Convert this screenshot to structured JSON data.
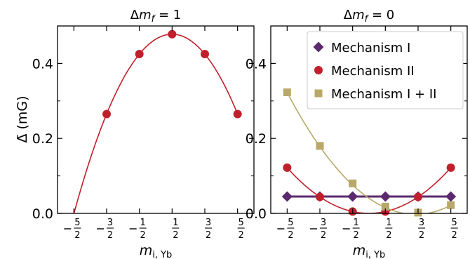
{
  "colors": {
    "mechanism_1": "#5b2a6e",
    "mechanism_2": "#c0202c",
    "mechanism_12": "#b8a96a",
    "axis": "#000000",
    "background": "#ffffff"
  },
  "shared": {
    "y_axis_label": "Δ̄ (mG)",
    "x_axis_label_base": "m",
    "x_axis_label_sub": "i, Yb",
    "x_ticks": [
      {
        "value": -2.5,
        "sign": "−",
        "num": "5",
        "den": "2"
      },
      {
        "value": -1.5,
        "sign": "−",
        "num": "3",
        "den": "2"
      },
      {
        "value": -0.5,
        "sign": "−",
        "num": "1",
        "den": "2"
      },
      {
        "value": 0.5,
        "sign": "",
        "num": "1",
        "den": "2"
      },
      {
        "value": 1.5,
        "sign": "",
        "num": "3",
        "den": "2"
      },
      {
        "value": 2.5,
        "sign": "",
        "num": "5",
        "den": "2"
      }
    ],
    "y_ticks": [
      {
        "value": 0.0,
        "label": "0.0"
      },
      {
        "value": 0.2,
        "label": "0.2"
      },
      {
        "value": 0.4,
        "label": "0.4"
      }
    ]
  },
  "chart_data": [
    {
      "type": "scatter",
      "title": "Δm_f = 1",
      "title_parts": {
        "pre": "Δ",
        "var": "m",
        "sub": "f",
        "post": " = 1"
      },
      "xlim": [
        -3.0,
        3.0
      ],
      "ylim": [
        0.0,
        0.5
      ],
      "series": [
        {
          "key": "mechanism_2",
          "marker": "circle",
          "x": [
            -1.5,
            -0.5,
            0.5,
            1.5,
            2.5
          ],
          "y": [
            0.265,
            0.425,
            0.478,
            0.425,
            0.265
          ],
          "fit": {
            "form": "quadratic",
            "a": -0.0532,
            "b": 0.0532,
            "c": 0.4647,
            "x_range": [
              -2.5,
              2.5
            ]
          }
        }
      ]
    },
    {
      "type": "scatter",
      "title": "Δm_f = 0",
      "title_parts": {
        "pre": "Δ",
        "var": "m",
        "sub": "f",
        "post": " = 0"
      },
      "xlim": [
        -3.0,
        3.0
      ],
      "ylim": [
        0.0,
        0.5
      ],
      "legend_position": "top-right",
      "series": [
        {
          "key": "mechanism_1",
          "name": "Mechanism I",
          "marker": "diamond",
          "x": [
            -2.5,
            -1.5,
            -0.5,
            0.5,
            1.5,
            2.5
          ],
          "y": [
            0.045,
            0.045,
            0.045,
            0.045,
            0.045,
            0.045
          ],
          "fit": {
            "form": "quadratic",
            "a": 0.0,
            "b": 0.0,
            "c": 0.045,
            "x_range": [
              -2.5,
              2.5
            ]
          }
        },
        {
          "key": "mechanism_2",
          "name": "Mechanism II",
          "marker": "circle",
          "x": [
            -2.5,
            -1.5,
            -0.5,
            0.5,
            1.5,
            2.5
          ],
          "y": [
            0.122,
            0.044,
            0.005,
            0.005,
            0.044,
            0.122
          ],
          "fit": {
            "form": "quadratic",
            "a": 0.0195,
            "b": 0.0,
            "c": 0.0,
            "x_range": [
              -2.5,
              2.5
            ]
          }
        },
        {
          "key": "mechanism_12",
          "name": "Mechanism I + II",
          "marker": "square",
          "x": [
            -2.5,
            -1.5,
            -0.5,
            0.5,
            1.5,
            2.5
          ],
          "y": [
            0.323,
            0.18,
            0.08,
            0.018,
            0.002,
            0.022
          ],
          "fit": {
            "form": "quadratic",
            "a": 0.0211,
            "b": -0.0602,
            "c": 0.0403,
            "x_range": [
              -2.5,
              2.5
            ]
          }
        }
      ]
    }
  ]
}
